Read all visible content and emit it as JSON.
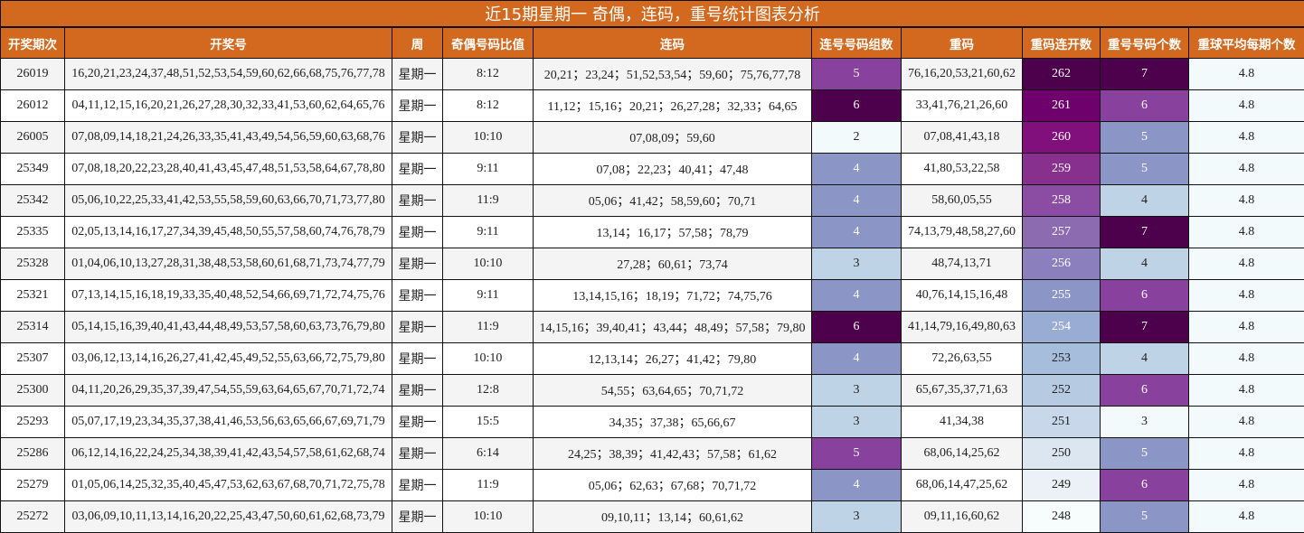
{
  "title": "近15期星期一 奇偶，连码，重号统计图表分析",
  "headers": [
    "开奖期次",
    "开奖号",
    "周",
    "奇偶号码比值",
    "连码",
    "连号号码组数",
    "重码",
    "重码连开数",
    "重号号码个数",
    "重球平均每期个数"
  ],
  "heat_colors": {
    "2": "#f3fafc",
    "3": "#bfd3e6",
    "4": "#8c96c6",
    "5": "#88419d",
    "6": "#4d004b",
    "7": "#4d004b",
    "repeat_count": {
      "3": "#f3fafc",
      "4": "#bfd3e6",
      "5": "#8c96c6",
      "6": "#88419d",
      "7": "#4d004b"
    },
    "streak": {
      "262": "#4d004b",
      "261": "#6e016b",
      "260": "#810f7c",
      "259": "#88308e",
      "258": "#8b4da3",
      "257": "#8c6bb1",
      "256": "#8c7fbe",
      "255": "#8c96c6",
      "254": "#99acd4",
      "253": "#a6bddb",
      "252": "#b6cbe2",
      "251": "#c8d8ea",
      "250": "#dbe6f0",
      "249": "#ebf1f7",
      "248": "#f7fcfd"
    },
    "avg": "#f3fafc"
  },
  "rows": [
    {
      "issue": "26019",
      "numbers": "16,20,21,23,24,37,48,51,52,53,54,59,60,62,66,68,75,76,77,78",
      "week": "星期一",
      "ratio": "8:12",
      "consecutive": "20,21；23,24；51,52,53,54；59,60；75,76,77,78",
      "groups": "5",
      "repeats": "76,16,20,53,21,60,62",
      "streak": "262",
      "repeat_count": "7",
      "avg": "4.8"
    },
    {
      "issue": "26012",
      "numbers": "04,11,12,15,16,20,21,26,27,28,30,32,33,41,53,60,62,64,65,76",
      "week": "星期一",
      "ratio": "8:12",
      "consecutive": "11,12；15,16；20,21；26,27,28；32,33；64,65",
      "groups": "6",
      "repeats": "33,41,76,21,26,60",
      "streak": "261",
      "repeat_count": "6",
      "avg": "4.8"
    },
    {
      "issue": "26005",
      "numbers": "07,08,09,14,18,21,24,26,33,35,41,43,49,54,56,59,60,63,68,76",
      "week": "星期一",
      "ratio": "10:10",
      "consecutive": "07,08,09；59,60",
      "groups": "2",
      "repeats": "07,08,41,43,18",
      "streak": "260",
      "repeat_count": "5",
      "avg": "4.8"
    },
    {
      "issue": "25349",
      "numbers": "07,08,18,20,22,23,28,40,41,43,45,47,48,51,53,58,64,67,78,80",
      "week": "星期一",
      "ratio": "9:11",
      "consecutive": "07,08；22,23；40,41；47,48",
      "groups": "4",
      "repeats": "41,80,53,22,58",
      "streak": "259",
      "repeat_count": "5",
      "avg": "4.8"
    },
    {
      "issue": "25342",
      "numbers": "05,06,10,22,25,33,41,42,53,55,58,59,60,63,66,70,71,73,77,80",
      "week": "星期一",
      "ratio": "11:9",
      "consecutive": "05,06；41,42；58,59,60；70,71",
      "groups": "4",
      "repeats": "58,60,05,55",
      "streak": "258",
      "repeat_count": "4",
      "avg": "4.8"
    },
    {
      "issue": "25335",
      "numbers": "02,05,13,14,16,17,27,34,39,45,48,50,55,57,58,60,74,76,78,79",
      "week": "星期一",
      "ratio": "9:11",
      "consecutive": "13,14；16,17；57,58；78,79",
      "groups": "4",
      "repeats": "74,13,79,48,58,27,60",
      "streak": "257",
      "repeat_count": "7",
      "avg": "4.8"
    },
    {
      "issue": "25328",
      "numbers": "01,04,06,10,13,27,28,31,38,48,53,58,60,61,68,71,73,74,77,79",
      "week": "星期一",
      "ratio": "10:10",
      "consecutive": "27,28；60,61；73,74",
      "groups": "3",
      "repeats": "48,74,13,71",
      "streak": "256",
      "repeat_count": "4",
      "avg": "4.8"
    },
    {
      "issue": "25321",
      "numbers": "07,13,14,15,16,18,19,33,35,40,48,52,54,66,69,71,72,74,75,76",
      "week": "星期一",
      "ratio": "9:11",
      "consecutive": "13,14,15,16；18,19；71,72；74,75,76",
      "groups": "4",
      "repeats": "40,76,14,15,16,48",
      "streak": "255",
      "repeat_count": "6",
      "avg": "4.8"
    },
    {
      "issue": "25314",
      "numbers": "05,14,15,16,39,40,41,43,44,48,49,53,57,58,60,63,73,76,79,80",
      "week": "星期一",
      "ratio": "11:9",
      "consecutive": "14,15,16；39,40,41；43,44；48,49；57,58；79,80",
      "groups": "6",
      "repeats": "41,14,79,16,49,80,63",
      "streak": "254",
      "repeat_count": "7",
      "avg": "4.8"
    },
    {
      "issue": "25307",
      "numbers": "03,06,12,13,14,16,26,27,41,42,45,49,52,55,63,66,72,75,79,80",
      "week": "星期一",
      "ratio": "10:10",
      "consecutive": "12,13,14；26,27；41,42；79,80",
      "groups": "4",
      "repeats": "72,26,63,55",
      "streak": "253",
      "repeat_count": "4",
      "avg": "4.8"
    },
    {
      "issue": "25300",
      "numbers": "04,11,20,26,29,35,37,39,47,54,55,59,63,64,65,67,70,71,72,74",
      "week": "星期一",
      "ratio": "12:8",
      "consecutive": "54,55；63,64,65；70,71,72",
      "groups": "3",
      "repeats": "65,67,35,37,71,63",
      "streak": "252",
      "repeat_count": "6",
      "avg": "4.8"
    },
    {
      "issue": "25293",
      "numbers": "05,07,17,19,23,34,35,37,38,41,46,53,56,63,65,66,67,69,71,79",
      "week": "星期一",
      "ratio": "15:5",
      "consecutive": "34,35；37,38；65,66,67",
      "groups": "3",
      "repeats": "41,34,38",
      "streak": "251",
      "repeat_count": "3",
      "avg": "4.8"
    },
    {
      "issue": "25286",
      "numbers": "06,12,14,16,22,24,25,34,38,39,41,42,43,54,57,58,61,62,68,74",
      "week": "星期一",
      "ratio": "6:14",
      "consecutive": "24,25；38,39；41,42,43；57,58；61,62",
      "groups": "5",
      "repeats": "68,06,14,25,62",
      "streak": "250",
      "repeat_count": "5",
      "avg": "4.8"
    },
    {
      "issue": "25279",
      "numbers": "01,05,06,14,25,32,35,40,45,47,53,62,63,67,68,70,71,72,75,78",
      "week": "星期一",
      "ratio": "11:9",
      "consecutive": "05,06；62,63；67,68；70,71,72",
      "groups": "4",
      "repeats": "68,06,14,47,25,62",
      "streak": "249",
      "repeat_count": "6",
      "avg": "4.8"
    },
    {
      "issue": "25272",
      "numbers": "03,06,09,10,11,13,14,16,20,22,25,43,47,50,60,61,62,68,73,79",
      "week": "星期一",
      "ratio": "10:10",
      "consecutive": "09,10,11；13,14；60,61,62",
      "groups": "3",
      "repeats": "09,11,16,60,62",
      "streak": "248",
      "repeat_count": "5",
      "avg": "4.8"
    }
  ]
}
